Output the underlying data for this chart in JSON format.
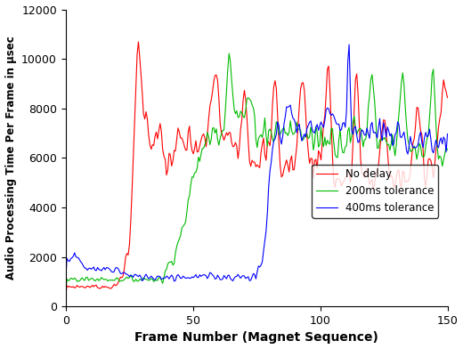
{
  "title": "",
  "xlabel": "Frame Number (Magnet Sequence)",
  "ylabel": "Audio Processing Time Per Frame in μsec",
  "xlim": [
    0,
    150
  ],
  "ylim": [
    0,
    12000
  ],
  "yticks": [
    0,
    2000,
    4000,
    6000,
    8000,
    10000,
    12000
  ],
  "xticks": [
    0,
    50,
    100,
    150
  ],
  "legend": [
    "No delay",
    "200ms tolerance",
    "400ms tolerance"
  ],
  "line_colors": [
    "#ff0000",
    "#00bb00",
    "#0000ff"
  ],
  "background_color": "#ffffff",
  "seed": 7
}
